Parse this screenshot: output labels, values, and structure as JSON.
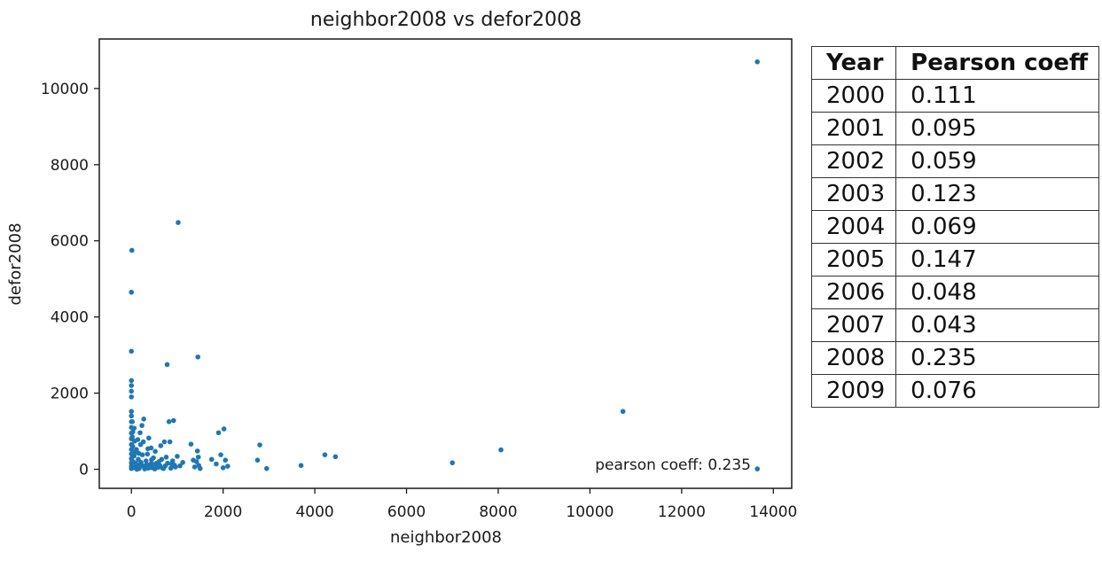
{
  "chart_data": {
    "type": "scatter",
    "title": "neighbor2008 vs defor2008",
    "xlabel": "neighbor2008",
    "ylabel": "defor2008",
    "xlim": [
      -700,
      14400
    ],
    "ylim": [
      -500,
      11300
    ],
    "xticks": [
      0,
      2000,
      4000,
      6000,
      8000,
      10000,
      12000,
      14000
    ],
    "yticks": [
      0,
      2000,
      4000,
      6000,
      8000,
      10000
    ],
    "grid": false,
    "marker_color": "#1f77b4",
    "annotation": "pearson coeff: 0.235",
    "points": [
      {
        "x": 13650,
        "y": 10700
      },
      {
        "x": 1020,
        "y": 6480
      },
      {
        "x": 10,
        "y": 5750
      },
      {
        "x": 0,
        "y": 4650
      },
      {
        "x": 1450,
        "y": 2950
      },
      {
        "x": 0,
        "y": 3100
      },
      {
        "x": 780,
        "y": 2750
      },
      {
        "x": 10720,
        "y": 1520
      },
      {
        "x": 0,
        "y": 2330
      },
      {
        "x": 0,
        "y": 2200
      },
      {
        "x": 0,
        "y": 2050
      },
      {
        "x": 0,
        "y": 1900
      },
      {
        "x": 0,
        "y": 1520
      },
      {
        "x": 0,
        "y": 1400
      },
      {
        "x": 0,
        "y": 1250
      },
      {
        "x": 0,
        "y": 1100
      },
      {
        "x": 0,
        "y": 950
      },
      {
        "x": 0,
        "y": 800
      },
      {
        "x": 0,
        "y": 650
      },
      {
        "x": 0,
        "y": 520
      },
      {
        "x": 0,
        "y": 400
      },
      {
        "x": 0,
        "y": 280
      },
      {
        "x": 0,
        "y": 170
      },
      {
        "x": 0,
        "y": 80
      },
      {
        "x": 0,
        "y": 20
      },
      {
        "x": 20,
        "y": 1250
      },
      {
        "x": 20,
        "y": 850
      },
      {
        "x": 30,
        "y": 600
      },
      {
        "x": 60,
        "y": 350
      },
      {
        "x": 40,
        "y": 200
      },
      {
        "x": 100,
        "y": 100
      },
      {
        "x": 120,
        "y": 0
      },
      {
        "x": 80,
        "y": 450
      },
      {
        "x": 150,
        "y": 260
      },
      {
        "x": 200,
        "y": 650
      },
      {
        "x": 180,
        "y": 120
      },
      {
        "x": 230,
        "y": 1150
      },
      {
        "x": 270,
        "y": 1320
      },
      {
        "x": 240,
        "y": 380
      },
      {
        "x": 300,
        "y": 60
      },
      {
        "x": 320,
        "y": 220
      },
      {
        "x": 360,
        "y": 540
      },
      {
        "x": 380,
        "y": 820
      },
      {
        "x": 420,
        "y": 140
      },
      {
        "x": 450,
        "y": 40
      },
      {
        "x": 480,
        "y": 300
      },
      {
        "x": 520,
        "y": 470
      },
      {
        "x": 560,
        "y": 90
      },
      {
        "x": 600,
        "y": 200
      },
      {
        "x": 640,
        "y": 620
      },
      {
        "x": 700,
        "y": 20
      },
      {
        "x": 720,
        "y": 720
      },
      {
        "x": 760,
        "y": 320
      },
      {
        "x": 820,
        "y": 1250
      },
      {
        "x": 840,
        "y": 720
      },
      {
        "x": 880,
        "y": 140
      },
      {
        "x": 920,
        "y": 1280
      },
      {
        "x": 960,
        "y": 60
      },
      {
        "x": 1000,
        "y": 340
      },
      {
        "x": 1060,
        "y": 90
      },
      {
        "x": 1120,
        "y": 180
      },
      {
        "x": 1300,
        "y": 660
      },
      {
        "x": 1350,
        "y": 240
      },
      {
        "x": 1380,
        "y": 60
      },
      {
        "x": 1420,
        "y": 200
      },
      {
        "x": 1440,
        "y": 480
      },
      {
        "x": 1460,
        "y": 320
      },
      {
        "x": 1470,
        "y": 100
      },
      {
        "x": 1500,
        "y": 20
      },
      {
        "x": 1750,
        "y": 260
      },
      {
        "x": 1850,
        "y": 140
      },
      {
        "x": 1900,
        "y": 960
      },
      {
        "x": 1950,
        "y": 380
      },
      {
        "x": 2000,
        "y": 40
      },
      {
        "x": 2020,
        "y": 1060
      },
      {
        "x": 2050,
        "y": 240
      },
      {
        "x": 2100,
        "y": 80
      },
      {
        "x": 2750,
        "y": 240
      },
      {
        "x": 2800,
        "y": 640
      },
      {
        "x": 2950,
        "y": 20
      },
      {
        "x": 3700,
        "y": 100
      },
      {
        "x": 4220,
        "y": 380
      },
      {
        "x": 4450,
        "y": 330
      },
      {
        "x": 7000,
        "y": 170
      },
      {
        "x": 8060,
        "y": 510
      },
      {
        "x": 13650,
        "y": 10
      },
      {
        "x": 50,
        "y": 40
      },
      {
        "x": 90,
        "y": 160
      },
      {
        "x": 130,
        "y": 60
      },
      {
        "x": 170,
        "y": 20
      },
      {
        "x": 210,
        "y": 180
      },
      {
        "x": 250,
        "y": 90
      },
      {
        "x": 290,
        "y": 10
      },
      {
        "x": 330,
        "y": 120
      },
      {
        "x": 370,
        "y": 30
      },
      {
        "x": 410,
        "y": 70
      },
      {
        "x": 440,
        "y": 250
      },
      {
        "x": 470,
        "y": 130
      },
      {
        "x": 510,
        "y": 10
      },
      {
        "x": 550,
        "y": 160
      },
      {
        "x": 580,
        "y": 50
      },
      {
        "x": 620,
        "y": 100
      },
      {
        "x": 660,
        "y": 260
      },
      {
        "x": 680,
        "y": 30
      },
      {
        "x": 740,
        "y": 90
      },
      {
        "x": 790,
        "y": 160
      },
      {
        "x": 860,
        "y": 30
      },
      {
        "x": 900,
        "y": 220
      },
      {
        "x": 940,
        "y": 110
      },
      {
        "x": 110,
        "y": 520
      },
      {
        "x": 140,
        "y": 780
      },
      {
        "x": 160,
        "y": 420
      },
      {
        "x": 260,
        "y": 720
      },
      {
        "x": 350,
        "y": 400
      },
      {
        "x": 430,
        "y": 560
      },
      {
        "x": 30,
        "y": 980
      },
      {
        "x": 60,
        "y": 1080
      },
      {
        "x": 70,
        "y": 740
      },
      {
        "x": 190,
        "y": 960
      }
    ]
  },
  "table": {
    "headers": [
      "Year",
      "Pearson coeff"
    ],
    "rows": [
      [
        "2000",
        "0.111"
      ],
      [
        "2001",
        "0.095"
      ],
      [
        "2002",
        "0.059"
      ],
      [
        "2003",
        "0.123"
      ],
      [
        "2004",
        "0.069"
      ],
      [
        "2005",
        "0.147"
      ],
      [
        "2006",
        "0.048"
      ],
      [
        "2007",
        "0.043"
      ],
      [
        "2008",
        "0.235"
      ],
      [
        "2009",
        "0.076"
      ]
    ]
  }
}
